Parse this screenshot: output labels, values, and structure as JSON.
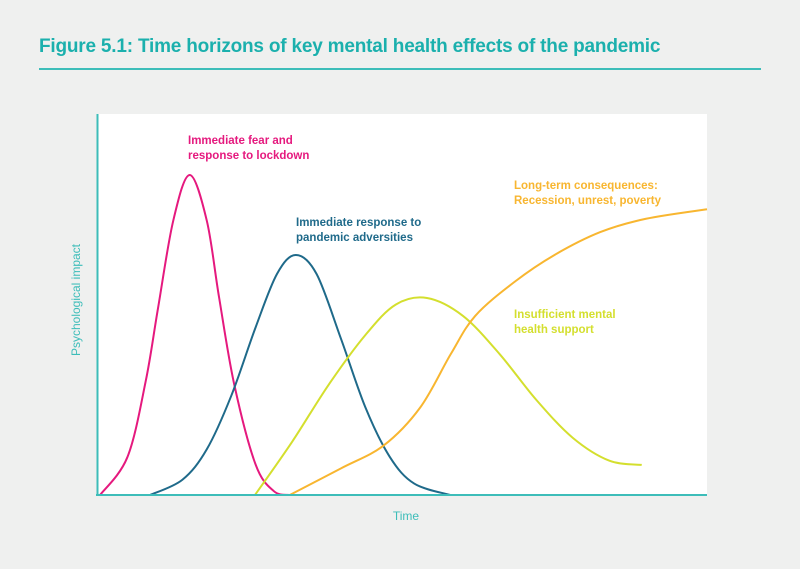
{
  "figure": {
    "title": "Figure 5.1: Time horizons of key mental health effects of the pandemic",
    "title_color": "#1bb0ad"
  },
  "chart_data": {
    "type": "line",
    "title": "Figure 5.1: Time horizons of key mental health effects of the pandemic",
    "xlabel": "Time",
    "ylabel": "Psychological impact",
    "xlim": [
      0,
      100
    ],
    "ylim": [
      0,
      100
    ],
    "ticks": "none",
    "grid": false,
    "axis_color": "#3dbdb9",
    "series": [
      {
        "name": "Immediate fear and response to lockdown",
        "label_lines": [
          "Immediate fear and",
          "response to lockdown"
        ],
        "color": "#e5197e",
        "x": [
          0.5,
          5,
          8,
          10,
          12.5,
          15.2,
          18,
          20,
          22.5,
          26,
          29,
          31.6
        ],
        "y": [
          0,
          10,
          30,
          49,
          72,
          84,
          72,
          52,
          29,
          8,
          1,
          0
        ]
      },
      {
        "name": "Immediate response to pandemic adversities",
        "label_lines": [
          "Immediate response to",
          "pandemic adversities"
        ],
        "color": "#1f6a8a",
        "x": [
          8.7,
          14,
          18,
          22,
          26,
          29.5,
          32.6,
          36,
          40,
          44,
          48,
          52,
          57.9
        ],
        "y": [
          0,
          4,
          12,
          26,
          44,
          58,
          63,
          58,
          41,
          23,
          10,
          3,
          0
        ]
      },
      {
        "name": "Insufficient mental health support",
        "label_lines": [
          "Insufficient mental",
          "health support"
        ],
        "color": "#d4df2e",
        "x": [
          25.9,
          32,
          38,
          44,
          49,
          54.1,
          60,
          66,
          72,
          78,
          84,
          89.3
        ],
        "y": [
          0,
          14,
          29,
          42,
          50,
          51.7,
          47,
          37,
          25,
          15,
          9,
          7.9
        ]
      },
      {
        "name": "Long-term consequences: Recession, unrest, poverty",
        "label_lines": [
          "Long-term consequences:",
          "Recession, unrest, poverty"
        ],
        "color": "#f8b630",
        "x": [
          31.6,
          40,
          47,
          53,
          58,
          62,
          68.5,
          75,
          82.5,
          90,
          100
        ],
        "y": [
          0,
          7,
          13,
          23,
          37,
          47,
          56,
          63,
          69,
          72.5,
          75
        ]
      }
    ]
  }
}
